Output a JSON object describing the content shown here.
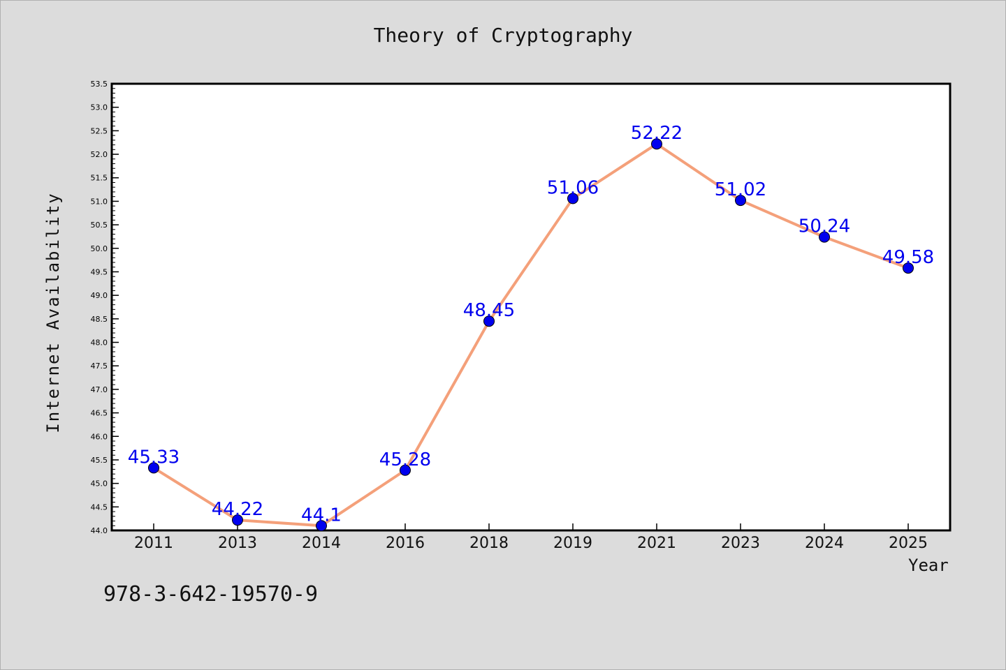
{
  "chart_data": {
    "type": "line",
    "title": "Theory of Cryptography",
    "xlabel": "Year",
    "ylabel": "Internet Availability",
    "categories": [
      "2011",
      "2013",
      "2014",
      "2016",
      "2018",
      "2019",
      "2021",
      "2023",
      "2024",
      "2025"
    ],
    "series": [
      {
        "values": [
          45.33,
          44.22,
          44.1,
          45.28,
          48.45,
          51.06,
          52.22,
          51.02,
          50.24,
          49.58
        ],
        "data_labels": [
          "45.33",
          "44.22",
          "44.1",
          "45.28",
          "48.45",
          "51.06",
          "52.22",
          "51.02",
          "50.24",
          "49.58"
        ],
        "line_color": "#f4a07a",
        "marker_color": "#0000ee"
      }
    ],
    "ylim": [
      44.0,
      53.5
    ],
    "yticks": [
      "44.0",
      "44.5",
      "45.0",
      "45.5",
      "46.0",
      "46.5",
      "47.0",
      "47.5",
      "48.0",
      "48.5",
      "49.0",
      "49.5",
      "50.0",
      "50.5",
      "51.0",
      "51.5",
      "52.0",
      "52.5",
      "53.0",
      "53.5"
    ],
    "grid": false,
    "label_color": "#0000ee"
  },
  "footer": {
    "isbn": "978-3-642-19570-9"
  }
}
